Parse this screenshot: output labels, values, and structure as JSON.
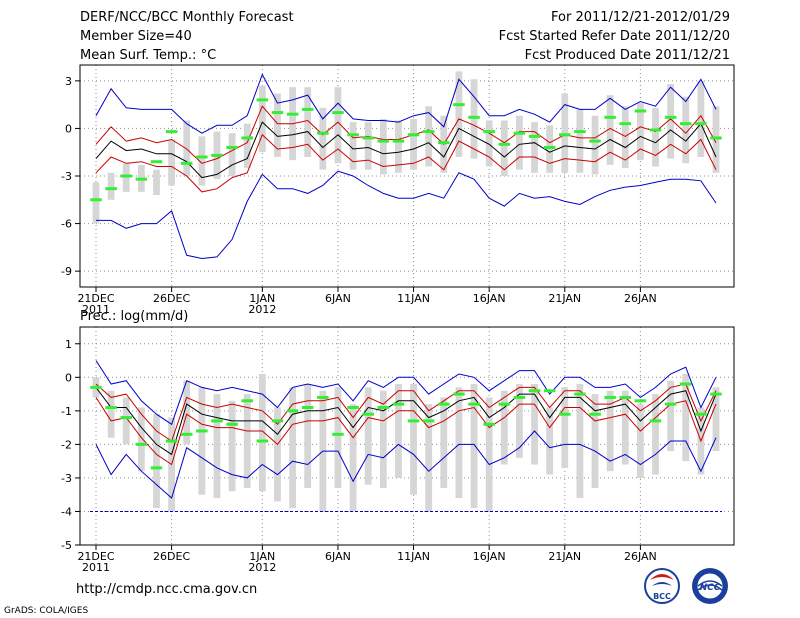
{
  "header": {
    "title": "DERF/NCC/BCC Monthly Forecast",
    "member_size": "Member Size=40",
    "variable": "Mean Surf. Temp.: °C",
    "period": "For 2011/12/21-2012/01/29",
    "started": "Fcst Started Refer Date 2011/12/20",
    "produced": "Fcst Produced Date 2011/12/21"
  },
  "footer": {
    "url": "http://cmdp.ncc.cma.gov.cn",
    "credit": "GrADS: COLA/IGES",
    "logo_bcc": "BCC",
    "logo_ncc": "NCC"
  },
  "colors": {
    "ensemble_mean": "#000000",
    "spread_inner": "#cc0000",
    "spread_outer": "#0000cc",
    "box": "#d6d6d6",
    "median": "#33ee33",
    "floor": "#0000cc"
  },
  "chart_data": [
    {
      "type": "line",
      "title": "Mean Surf. Temp.: °C",
      "xlabel": "",
      "ylabel": "",
      "ylim": [
        -10,
        4
      ],
      "yticks": [
        3,
        0,
        -3,
        -6,
        -9
      ],
      "ytick_labels": [
        "3",
        "0",
        "-3",
        "-6",
        "-9"
      ],
      "x_tick_labels": [
        {
          "day": 0,
          "label": "21DEC",
          "sub": "2011"
        },
        {
          "day": 5,
          "label": "26DEC",
          "sub": ""
        },
        {
          "day": 11,
          "label": "1JAN",
          "sub": "2012"
        },
        {
          "day": 16,
          "label": "6JAN",
          "sub": ""
        },
        {
          "day": 21,
          "label": "11JAN",
          "sub": ""
        },
        {
          "day": 26,
          "label": "16JAN",
          "sub": ""
        },
        {
          "day": 31,
          "label": "21JAN",
          "sub": ""
        },
        {
          "day": 36,
          "label": "26JAN",
          "sub": ""
        }
      ],
      "grid": true,
      "series": [
        {
          "name": "outer upper",
          "color": "#0000cc",
          "values": [
            0.8,
            2.5,
            1.3,
            1.2,
            1.2,
            1.2,
            0.3,
            -0.3,
            0.2,
            0.2,
            0.8,
            3.4,
            1.6,
            1.8,
            2.1,
            0.6,
            1.6,
            0.6,
            0.5,
            0.5,
            0.4,
            0.8,
            1.0,
            0.1,
            3.1,
            2.0,
            0.8,
            0.8,
            1.2,
            0.9,
            0.4,
            1.5,
            1.2,
            1.2,
            1.9,
            1.2,
            1.7,
            1.4,
            2.6,
            1.7,
            3.1,
            1.2
          ]
        },
        {
          "name": "inner upper",
          "color": "#cc0000",
          "values": [
            -1.0,
            0.1,
            -0.8,
            -0.6,
            -0.9,
            -0.7,
            -1.3,
            -2.2,
            -1.9,
            -1.4,
            -0.9,
            1.4,
            0.3,
            0.3,
            0.5,
            -0.4,
            0.4,
            -0.6,
            -0.5,
            -0.7,
            -0.7,
            -0.4,
            -0.1,
            -1.0,
            0.6,
            0.2,
            -0.3,
            -0.9,
            -0.2,
            -0.2,
            -0.9,
            -0.4,
            -0.6,
            -0.6,
            0.0,
            -0.5,
            0.1,
            -0.2,
            0.6,
            -0.3,
            0.8,
            -0.9
          ]
        },
        {
          "name": "ensemble mean",
          "color": "#000000",
          "values": [
            -1.9,
            -0.8,
            -1.4,
            -1.3,
            -1.6,
            -1.6,
            -2.1,
            -3.1,
            -2.9,
            -2.3,
            -1.9,
            0.4,
            -0.5,
            -0.4,
            -0.2,
            -1.2,
            -0.4,
            -1.3,
            -1.2,
            -1.6,
            -1.5,
            -1.3,
            -0.9,
            -1.8,
            0.0,
            -0.5,
            -1.0,
            -1.8,
            -1.0,
            -0.9,
            -1.5,
            -1.1,
            -1.2,
            -1.3,
            -0.7,
            -1.2,
            -0.5,
            -0.9,
            -0.1,
            -0.8,
            0.3,
            -1.8
          ]
        },
        {
          "name": "inner lower",
          "color": "#cc0000",
          "values": [
            -2.8,
            -1.8,
            -2.2,
            -2.1,
            -2.4,
            -2.4,
            -3.0,
            -4.0,
            -3.8,
            -3.1,
            -2.8,
            -0.4,
            -1.3,
            -1.2,
            -1.0,
            -2.0,
            -1.3,
            -2.1,
            -2.0,
            -2.4,
            -2.3,
            -2.2,
            -1.8,
            -2.6,
            -0.8,
            -1.3,
            -1.8,
            -2.6,
            -1.8,
            -1.8,
            -2.2,
            -1.9,
            -2.0,
            -2.1,
            -1.5,
            -2.0,
            -1.3,
            -1.7,
            -1.0,
            -1.6,
            -0.7,
            -2.6
          ]
        },
        {
          "name": "outer lower",
          "color": "#0000cc",
          "values": [
            -5.8,
            -5.8,
            -6.3,
            -6.0,
            -6.0,
            -5.2,
            -8.0,
            -8.2,
            -8.1,
            -7.0,
            -4.6,
            -2.9,
            -3.8,
            -3.8,
            -4.1,
            -3.6,
            -2.7,
            -3.0,
            -3.6,
            -4.1,
            -4.4,
            -4.4,
            -4.1,
            -4.4,
            -2.8,
            -3.2,
            -4.4,
            -4.9,
            -4.1,
            -4.4,
            -4.3,
            -4.6,
            -4.8,
            -4.3,
            -3.9,
            -3.7,
            -3.6,
            -3.4,
            -3.2,
            -3.2,
            -3.3,
            -4.7
          ]
        }
      ],
      "boxes": {
        "low": [
          -6.0,
          -4.5,
          -4.0,
          -4.0,
          -4.2,
          -3.6,
          -3.0,
          -3.6,
          -3.2,
          -3.0,
          -2.5,
          -1.5,
          -1.8,
          -2.0,
          -1.8,
          -2.6,
          -2.2,
          -2.6,
          -2.6,
          -2.9,
          -2.8,
          -2.6,
          -2.4,
          -2.8,
          -1.8,
          -1.9,
          -2.4,
          -3.0,
          -2.6,
          -2.8,
          -2.8,
          -2.8,
          -2.8,
          -2.9,
          -2.3,
          -2.5,
          -2.0,
          -2.4,
          -1.9,
          -2.2,
          -1.8,
          -2.8
        ],
        "high": [
          -3.4,
          -2.8,
          -2.2,
          -2.3,
          -2.6,
          -0.7,
          0.5,
          -0.5,
          -0.2,
          -0.3,
          0.3,
          2.7,
          2.2,
          2.6,
          2.6,
          1.3,
          2.6,
          0.4,
          0.4,
          0.6,
          0.5,
          0.6,
          1.4,
          0.8,
          3.6,
          3.1,
          0.5,
          0.5,
          0.8,
          0.4,
          0.2,
          2.2,
          1.2,
          0.8,
          2.1,
          1.4,
          1.6,
          1.3,
          2.8,
          2.0,
          3.0,
          1.4
        ],
        "median": [
          -4.5,
          -3.8,
          -3.0,
          -3.2,
          -2.1,
          -0.2,
          -2.2,
          -1.8,
          -1.7,
          -1.2,
          -0.6,
          1.8,
          1.0,
          0.9,
          1.2,
          -0.3,
          1.0,
          -0.4,
          -0.6,
          -0.8,
          -0.8,
          -0.4,
          -0.2,
          -0.9,
          1.5,
          0.7,
          -0.2,
          -1.0,
          -0.3,
          -0.5,
          -1.2,
          -0.4,
          -0.2,
          -0.8,
          0.7,
          0.3,
          1.1,
          -0.1,
          0.7,
          0.3,
          0.3,
          -0.6
        ]
      }
    },
    {
      "type": "line",
      "title": "Prec.: log(mm/d)",
      "xlabel": "",
      "ylabel": "",
      "ylim": [
        -5,
        1.5
      ],
      "yticks": [
        1,
        0,
        -1,
        -2,
        -3,
        -4,
        -5
      ],
      "ytick_labels": [
        "1",
        "0",
        "-1",
        "-2",
        "-3",
        "-4",
        "-5"
      ],
      "x_tick_labels": [
        {
          "day": 0,
          "label": "21DEC",
          "sub": "2011"
        },
        {
          "day": 5,
          "label": "26DEC",
          "sub": ""
        },
        {
          "day": 11,
          "label": "1JAN",
          "sub": "2012"
        },
        {
          "day": 16,
          "label": "6JAN",
          "sub": ""
        },
        {
          "day": 21,
          "label": "11JAN",
          "sub": ""
        },
        {
          "day": 26,
          "label": "16JAN",
          "sub": ""
        },
        {
          "day": 31,
          "label": "21JAN",
          "sub": ""
        },
        {
          "day": 36,
          "label": "26JAN",
          "sub": ""
        }
      ],
      "grid": true,
      "floor_line": -4,
      "series": [
        {
          "name": "outer upper",
          "color": "#0000cc",
          "values": [
            0.5,
            -0.2,
            -0.1,
            -0.7,
            -1.1,
            -1.4,
            -0.1,
            -0.3,
            -0.4,
            -0.3,
            -0.4,
            -0.5,
            -0.9,
            -0.3,
            -0.2,
            -0.3,
            -0.2,
            -0.7,
            -0.1,
            -0.3,
            0.0,
            0.0,
            -0.5,
            -0.2,
            0.1,
            0.0,
            -0.4,
            -0.1,
            0.2,
            0.2,
            -0.5,
            0.0,
            0.0,
            -0.3,
            -0.3,
            -0.2,
            -0.6,
            -0.3,
            0.1,
            0.3,
            -0.9,
            0.0
          ]
        },
        {
          "name": "inner upper",
          "color": "#cc0000",
          "values": [
            -0.2,
            -0.6,
            -0.5,
            -1.1,
            -1.6,
            -1.9,
            -0.6,
            -0.8,
            -0.9,
            -0.8,
            -0.9,
            -1.0,
            -1.4,
            -0.8,
            -0.7,
            -0.7,
            -0.6,
            -1.2,
            -0.6,
            -0.8,
            -0.4,
            -0.4,
            -1.0,
            -0.7,
            -0.4,
            -0.4,
            -0.9,
            -0.6,
            -0.3,
            -0.3,
            -0.9,
            -0.4,
            -0.4,
            -0.8,
            -0.8,
            -0.6,
            -1.0,
            -0.7,
            -0.3,
            -0.2,
            -1.3,
            -0.4
          ]
        },
        {
          "name": "ensemble mean",
          "color": "#000000",
          "values": [
            -0.3,
            -0.9,
            -0.9,
            -1.5,
            -2.0,
            -2.3,
            -0.8,
            -1.1,
            -1.2,
            -1.3,
            -1.3,
            -1.3,
            -1.7,
            -1.1,
            -1.0,
            -1.0,
            -0.9,
            -1.5,
            -0.9,
            -1.0,
            -0.7,
            -0.7,
            -1.2,
            -1.0,
            -0.7,
            -0.6,
            -1.2,
            -0.9,
            -0.5,
            -0.5,
            -1.2,
            -0.6,
            -0.6,
            -1.0,
            -0.9,
            -0.8,
            -1.3,
            -0.9,
            -0.5,
            -0.4,
            -1.6,
            -0.5
          ]
        },
        {
          "name": "inner lower",
          "color": "#cc0000",
          "values": [
            -0.6,
            -1.3,
            -1.2,
            -1.8,
            -2.3,
            -2.6,
            -1.1,
            -1.4,
            -1.5,
            -1.5,
            -1.6,
            -1.6,
            -2.0,
            -1.4,
            -1.3,
            -1.3,
            -1.2,
            -1.8,
            -1.2,
            -1.3,
            -1.0,
            -1.0,
            -1.5,
            -1.3,
            -1.0,
            -0.9,
            -1.5,
            -1.2,
            -0.8,
            -0.8,
            -1.5,
            -0.9,
            -0.9,
            -1.3,
            -1.2,
            -1.1,
            -1.6,
            -1.2,
            -0.8,
            -0.7,
            -1.9,
            -0.8
          ]
        },
        {
          "name": "outer lower",
          "color": "#0000cc",
          "values": [
            -2.0,
            -2.9,
            -2.3,
            -2.8,
            -3.2,
            -3.6,
            -2.1,
            -2.4,
            -2.7,
            -2.9,
            -3.0,
            -2.6,
            -2.9,
            -2.5,
            -2.6,
            -2.2,
            -2.2,
            -3.1,
            -2.3,
            -2.4,
            -2.0,
            -2.3,
            -2.8,
            -2.4,
            -2.0,
            -2.0,
            -2.6,
            -2.4,
            -2.1,
            -1.6,
            -2.1,
            -2.0,
            -2.0,
            -2.2,
            -2.5,
            -2.3,
            -2.6,
            -2.3,
            -1.9,
            -1.9,
            -2.8,
            -1.8
          ]
        }
      ],
      "boxes": {
        "low": [
          -0.6,
          -1.8,
          -2.0,
          -2.8,
          -3.9,
          -4.0,
          -2.0,
          -3.5,
          -3.6,
          -3.4,
          -3.3,
          -3.4,
          -3.7,
          -3.9,
          -3.3,
          -4.0,
          -3.3,
          -4.0,
          -3.2,
          -3.3,
          -3.0,
          -3.5,
          -4.0,
          -3.3,
          -3.6,
          -3.9,
          -4.0,
          -2.6,
          -2.4,
          -2.6,
          -2.9,
          -2.7,
          -3.6,
          -3.3,
          -2.8,
          -2.6,
          -3.0,
          -2.9,
          -2.2,
          -2.5,
          -2.9,
          -2.2
        ],
        "high": [
          0.0,
          -0.4,
          -0.6,
          -0.9,
          -1.1,
          -1.2,
          -0.1,
          -0.3,
          -0.5,
          -0.7,
          -0.5,
          0.1,
          -0.9,
          -0.3,
          -0.2,
          -0.4,
          -0.3,
          -0.8,
          -0.3,
          -0.4,
          -0.2,
          -0.2,
          -0.8,
          -0.6,
          -0.3,
          -0.2,
          -0.6,
          -0.4,
          -0.2,
          -0.2,
          -0.9,
          -0.3,
          -0.2,
          -0.5,
          -0.4,
          -0.4,
          -0.8,
          -0.5,
          -0.1,
          0.1,
          -0.9,
          -0.3
        ],
        "median": [
          -0.3,
          -0.9,
          -1.2,
          -2.0,
          -2.7,
          -1.9,
          -1.7,
          -1.6,
          -1.3,
          -1.4,
          -0.7,
          -1.9,
          -1.3,
          -1.0,
          -0.9,
          -0.6,
          -1.7,
          -0.9,
          -1.1,
          -0.9,
          -0.8,
          -1.3,
          -1.3,
          -0.8,
          -0.5,
          -0.8,
          -1.4,
          -0.8,
          -0.6,
          -0.4,
          -0.4,
          -1.1,
          -0.5,
          -1.1,
          -0.6,
          -0.6,
          -0.7,
          -1.3,
          -0.8,
          -0.2,
          -1.1,
          -0.5
        ]
      }
    }
  ]
}
